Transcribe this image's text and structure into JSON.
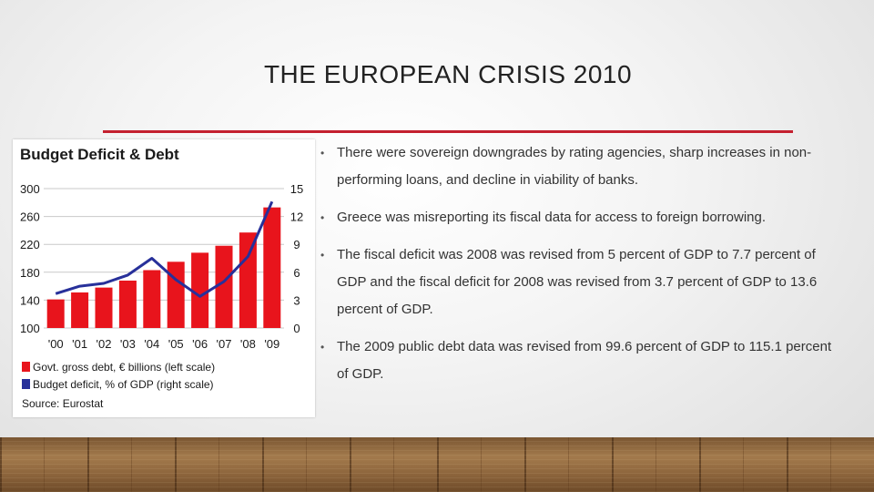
{
  "slide": {
    "title": "THE EUROPEAN CRISIS 2010",
    "accent_color": "#c4202f",
    "bullets": [
      "There were sovereign downgrades by rating agencies, sharp increases in non-performing loans, and decline in viability of banks.",
      "Greece was misreporting its fiscal data for access to foreign borrowing.",
      "The fiscal deficit was 2008 was revised from 5 percent of GDP to 7.7 percent of GDP and the fiscal deficit for 2008 was revised from 3.7 percent of GDP to 13.6 percent of GDP.",
      "The 2009 public debt data was revised from 99.6 percent of GDP to 115.1 percent of GDP."
    ]
  },
  "chart_data": {
    "type": "bar",
    "title": "Budget Deficit & Debt",
    "categories": [
      "'00",
      "'01",
      "'02",
      "'03",
      "'04",
      "'05",
      "'06",
      "'07",
      "'08",
      "'09"
    ],
    "series": [
      {
        "name": "Govt. gross debt, € billions (left scale)",
        "type": "bar",
        "axis": "left",
        "color": "#e8141c",
        "values": [
          141,
          151,
          158,
          168,
          183,
          195,
          208,
          218,
          237,
          273
        ]
      },
      {
        "name": "Budget deficit, % of GDP (right scale)",
        "type": "line",
        "axis": "right",
        "color": "#27309a",
        "values": [
          3.7,
          4.5,
          4.8,
          5.7,
          7.5,
          5.2,
          3.4,
          5.0,
          7.7,
          13.6
        ]
      }
    ],
    "y_left": {
      "min": 100,
      "max": 300,
      "ticks": [
        "300",
        "260",
        "220",
        "180",
        "140",
        "100"
      ]
    },
    "y_right": {
      "min": 0,
      "max": 15,
      "ticks": [
        "15",
        "12",
        "9",
        "6",
        "3",
        "0"
      ]
    },
    "grid": true,
    "source": "Source: Eurostat"
  }
}
